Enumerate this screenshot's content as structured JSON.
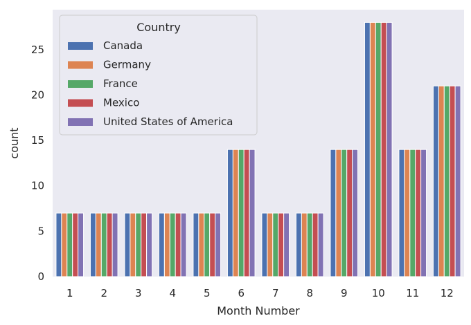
{
  "chart_data": {
    "type": "bar",
    "title": "",
    "xlabel": "Month Number",
    "ylabel": "count",
    "categories": [
      "1",
      "2",
      "3",
      "4",
      "5",
      "6",
      "7",
      "8",
      "9",
      "10",
      "11",
      "12"
    ],
    "series": [
      {
        "name": "Canada",
        "color": "#4C72B0",
        "values": [
          7,
          7,
          7,
          7,
          7,
          14,
          7,
          7,
          14,
          28,
          14,
          21
        ]
      },
      {
        "name": "Germany",
        "color": "#DD8452",
        "values": [
          7,
          7,
          7,
          7,
          7,
          14,
          7,
          7,
          14,
          28,
          14,
          21
        ]
      },
      {
        "name": "France",
        "color": "#55A868",
        "values": [
          7,
          7,
          7,
          7,
          7,
          14,
          7,
          7,
          14,
          28,
          14,
          21
        ]
      },
      {
        "name": "Mexico",
        "color": "#C44E52",
        "values": [
          7,
          7,
          7,
          7,
          7,
          14,
          7,
          7,
          14,
          28,
          14,
          21
        ]
      },
      {
        "name": "United States of America",
        "color": "#8172B3",
        "values": [
          7,
          7,
          7,
          7,
          7,
          14,
          7,
          7,
          14,
          28,
          14,
          21
        ]
      }
    ],
    "ylim": [
      0,
      29.4
    ],
    "yticks": [
      0,
      5,
      10,
      15,
      20,
      25
    ],
    "grid": false,
    "legend": {
      "title": "Country",
      "placement": "top-left"
    },
    "background": "#EAEAF2"
  }
}
